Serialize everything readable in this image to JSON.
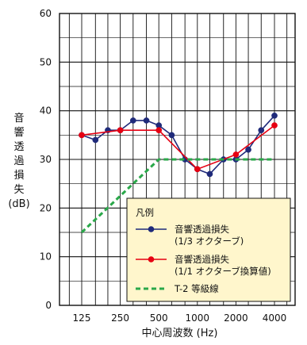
{
  "chart_data": {
    "type": "line",
    "title": "",
    "xlabel": "中心周波数 (Hz)",
    "ylabel_lines": [
      "音",
      "響",
      "透",
      "過",
      "損",
      "失"
    ],
    "ylabel_unit": "(dB)",
    "x_scale": "log",
    "x_tick_labels": [
      "125",
      "250",
      "500",
      "1000",
      "2000",
      "4000"
    ],
    "y_ticks": [
      0,
      10,
      20,
      30,
      40,
      50,
      60
    ],
    "ylim": [
      0,
      60
    ],
    "grid": true,
    "legend_position": "bottom-right",
    "legend_title": "凡例",
    "series": [
      {
        "id": "third_octave",
        "name_lines": [
          "音響透過損失",
          "(1/3 オクターブ)"
        ],
        "color": "#1f2a7a",
        "marker": "circle",
        "x": [
          125,
          160,
          200,
          250,
          315,
          400,
          500,
          630,
          800,
          1000,
          1250,
          1600,
          2000,
          2500,
          3150,
          4000
        ],
        "values": [
          35,
          34,
          36,
          36,
          38,
          38,
          37,
          35,
          30,
          28,
          27,
          30,
          30,
          32,
          36,
          39
        ]
      },
      {
        "id": "one_octave",
        "name_lines": [
          "音響透過損失",
          "(1/1 オクターブ換算値)"
        ],
        "color": "#e60012",
        "marker": "circle",
        "x": [
          125,
          250,
          500,
          1000,
          2000,
          4000
        ],
        "values": [
          35,
          36,
          36,
          28,
          31,
          37
        ]
      },
      {
        "id": "t2",
        "name_lines": [
          "T-2 等級線"
        ],
        "color": "#2aa84a",
        "marker": "none",
        "dashed": true,
        "x": [
          125,
          500,
          4000
        ],
        "values": [
          15,
          30,
          30
        ]
      }
    ]
  }
}
